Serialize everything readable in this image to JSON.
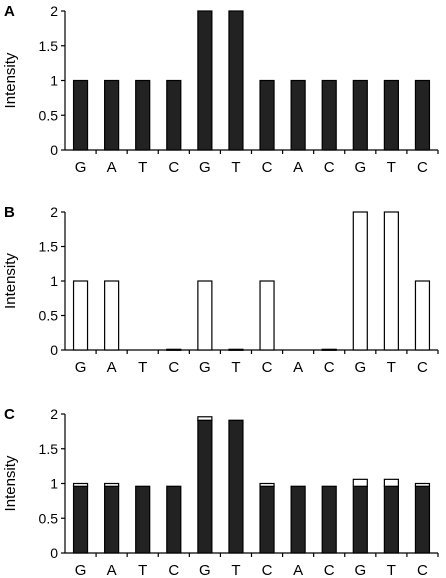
{
  "chart_data": [
    {
      "type": "bar",
      "panel": "A",
      "ylabel": "Intensity",
      "ylim": [
        0,
        2
      ],
      "yticks": [
        "0",
        "0.5",
        "1",
        "1.5",
        "2"
      ],
      "categories": [
        "G",
        "A",
        "T",
        "C",
        "G",
        "T",
        "C",
        "A",
        "C",
        "G",
        "T",
        "C"
      ],
      "fill": "#222222",
      "values": [
        1,
        1,
        1,
        1,
        2,
        2,
        1,
        1,
        1,
        1,
        1,
        1
      ]
    },
    {
      "type": "bar",
      "panel": "B",
      "ylabel": "Intensity",
      "ylim": [
        0,
        2
      ],
      "yticks": [
        "0",
        "0.5",
        "1",
        "1.5",
        "2"
      ],
      "categories": [
        "G",
        "A",
        "T",
        "C",
        "G",
        "T",
        "C",
        "A",
        "C",
        "G",
        "T",
        "C"
      ],
      "fill": "#ffffff",
      "values": [
        1,
        1,
        0,
        0.01,
        1,
        0.01,
        1,
        0,
        0.01,
        2,
        2,
        1
      ]
    },
    {
      "type": "bar",
      "panel": "C",
      "ylabel": "Intensity",
      "ylim": [
        0,
        2
      ],
      "yticks": [
        "0",
        "0.5",
        "1",
        "1.5",
        "2"
      ],
      "categories": [
        "G",
        "A",
        "T",
        "C",
        "G",
        "T",
        "C",
        "A",
        "C",
        "G",
        "T",
        "C"
      ],
      "stacked": true,
      "series": [
        {
          "fill": "#222222",
          "values": [
            0.96,
            0.96,
            0.96,
            0.96,
            1.91,
            1.91,
            0.96,
            0.96,
            0.96,
            0.96,
            0.96,
            0.96
          ]
        },
        {
          "fill": "#ffffff",
          "values": [
            0.04,
            0.04,
            0,
            0,
            0.05,
            0,
            0.04,
            0,
            0,
            0.1,
            0.1,
            0.04
          ]
        }
      ]
    }
  ]
}
